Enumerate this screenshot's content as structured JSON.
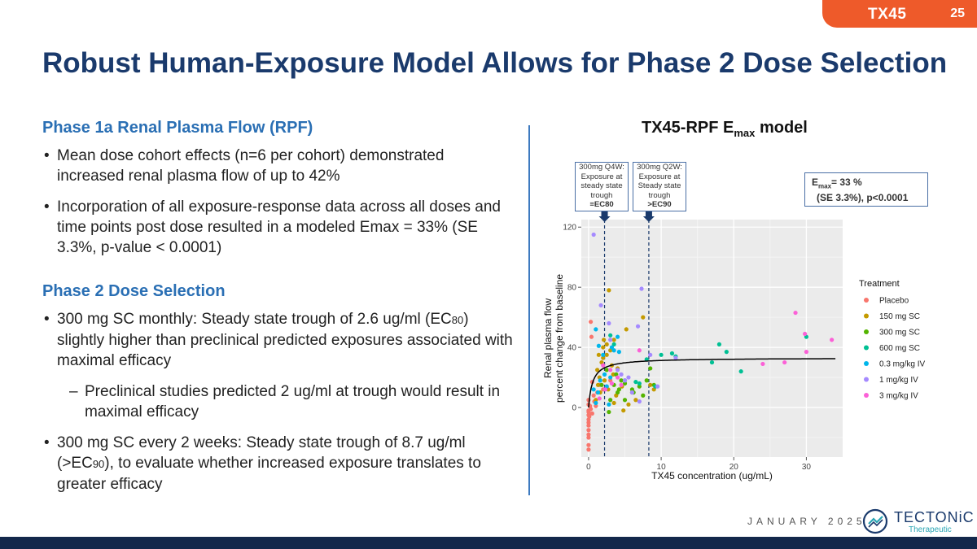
{
  "tag": {
    "name": "TX45",
    "page_number": "25"
  },
  "title": "Robust Human-Exposure Model Allows for Phase 2 Dose Selection",
  "left": {
    "section1_heading": "Phase 1a Renal Plasma Flow (RPF)",
    "section1_bullets": [
      "Mean dose cohort effects (n=6 per cohort) demonstrated increased renal plasma flow of up to 42%",
      "Incorporation of all exposure-response data across all doses and time points post dose resulted in a modeled Emax = 33% (SE 3.3%, p-value < 0.0001)"
    ],
    "section2_heading": "Phase 2 Dose Selection",
    "bullet3_part1": "300 mg SC monthly: Steady state trough of 2.6 ug/ml (EC",
    "bullet3_sub": "80",
    "bullet3_part2": ") slightly higher than preclinical predicted exposures associated with maximal efficacy",
    "sub_bullet": "Preclinical studies predicted 2 ug/ml at trough would result in maximal efficacy",
    "bullet4_part1": "300 mg SC every 2 weeks: Steady state trough of 8.7 ug/ml (>EC",
    "bullet4_sub": "90",
    "bullet4_part2": "), to evaluate whether increased exposure translates to greater efficacy"
  },
  "chart_title_main": "TX45-RPF E",
  "chart_title_sub": "max",
  "chart_title_rest": " model",
  "callouts": {
    "q4w": [
      "300mg Q4W:",
      "Exposure at",
      "steady state",
      "trough",
      "≡EC80"
    ],
    "q2w": [
      "300mg Q2W:",
      "Exposure at",
      "Steady state",
      "trough",
      ">EC90"
    ]
  },
  "emax_box": {
    "line1_a": "E",
    "line1_sub": "max",
    "line1_b": "= 33 %",
    "line2": "(SE 3.3%),  p<0.0001"
  },
  "colors": {
    "title": "#1a3a6c",
    "accent": "#2a6fb4",
    "tag": "#ee5a2a",
    "footer": "#13284b",
    "plot_bg": "#ebebeb",
    "series": [
      "#f8766d",
      "#c49a00",
      "#53b400",
      "#00c094",
      "#00b6eb",
      "#a58aff",
      "#fb61d7"
    ]
  },
  "chart_data": {
    "type": "scatter",
    "title": "TX45-RPF Emax model",
    "xlabel": "TX45 concentration (ug/mL)",
    "ylabel": [
      "Renal plasma flow",
      "percent change from baseline"
    ],
    "xlim": [
      -1,
      35
    ],
    "ylim": [
      -33,
      125
    ],
    "xticks": [
      0,
      10,
      20,
      30
    ],
    "yticks": [
      0,
      40,
      80,
      120
    ],
    "grid": true,
    "legend_title": "Treatment",
    "legend_position": "right",
    "reference_lines_x": [
      2.2,
      8.3
    ],
    "fit": {
      "emax": 33,
      "ec50": 0.55
    },
    "series": [
      {
        "name": "Placebo",
        "points": [
          [
            0,
            -2
          ],
          [
            0,
            -5
          ],
          [
            0,
            -8
          ],
          [
            0,
            -10
          ],
          [
            0,
            -12
          ],
          [
            0,
            -15
          ],
          [
            0,
            -18
          ],
          [
            0,
            -20
          ],
          [
            0,
            -25
          ],
          [
            0,
            -28
          ],
          [
            0,
            2
          ],
          [
            0,
            5
          ],
          [
            0,
            -3
          ],
          [
            0.1,
            -6
          ],
          [
            0.2,
            1
          ],
          [
            0.3,
            -1
          ],
          [
            0.5,
            -4
          ],
          [
            0.3,
            57
          ],
          [
            0.4,
            47
          ],
          [
            0.5,
            17
          ],
          [
            0.7,
            8
          ],
          [
            1.2,
            10
          ],
          [
            1.5,
            15
          ],
          [
            2,
            12
          ],
          [
            2.5,
            14
          ],
          [
            3,
            18
          ],
          [
            0.8,
            4
          ],
          [
            1,
            1
          ]
        ]
      },
      {
        "name": "150 mg SC",
        "points": [
          [
            2.8,
            78
          ],
          [
            7.5,
            60
          ],
          [
            3.5,
            45
          ],
          [
            5.2,
            52
          ],
          [
            2,
            40
          ],
          [
            2.5,
            35
          ],
          [
            1.8,
            30
          ],
          [
            3,
            38
          ],
          [
            1.2,
            25
          ],
          [
            1.5,
            20
          ],
          [
            2.2,
            18
          ],
          [
            4,
            26
          ],
          [
            3.2,
            28
          ],
          [
            2.7,
            12
          ],
          [
            3.8,
            8
          ],
          [
            1,
            5
          ],
          [
            1.6,
            10
          ],
          [
            2.5,
            42
          ],
          [
            2.1,
            45
          ],
          [
            3.4,
            22
          ],
          [
            4.6,
            14
          ],
          [
            6,
            10
          ],
          [
            6.5,
            5
          ],
          [
            8.5,
            15
          ],
          [
            9,
            12
          ],
          [
            5.5,
            2
          ],
          [
            4.8,
            -2
          ],
          [
            3.5,
            3
          ],
          [
            1.3,
            15
          ],
          [
            2,
            33
          ],
          [
            1.4,
            35
          ]
        ]
      },
      {
        "name": "300 mg SC",
        "points": [
          [
            3,
            5
          ],
          [
            3.5,
            15
          ],
          [
            4,
            10
          ],
          [
            4.5,
            18
          ],
          [
            5,
            16
          ],
          [
            6,
            12
          ],
          [
            7,
            14
          ],
          [
            8,
            18
          ],
          [
            8.5,
            26
          ],
          [
            9,
            15
          ],
          [
            3.8,
            22
          ],
          [
            2.8,
            -3
          ],
          [
            5,
            5
          ],
          [
            6.2,
            10
          ],
          [
            1.8,
            15
          ],
          [
            2.5,
            25
          ],
          [
            7.5,
            8
          ],
          [
            4.2,
            12
          ]
        ]
      },
      {
        "name": "600 mg SC",
        "points": [
          [
            3,
            48
          ],
          [
            3.5,
            42
          ],
          [
            10,
            35
          ],
          [
            11.5,
            36
          ],
          [
            12,
            34
          ],
          [
            18,
            42
          ],
          [
            19,
            37
          ],
          [
            17,
            30
          ],
          [
            21,
            24
          ],
          [
            30,
            47
          ],
          [
            8,
            32
          ],
          [
            7,
            16
          ],
          [
            9.2,
            14
          ],
          [
            6.5,
            17
          ],
          [
            5,
            18
          ]
        ]
      },
      {
        "name": "0.3 mg/kg IV",
        "points": [
          [
            1,
            52
          ],
          [
            1.4,
            41
          ],
          [
            2,
            35
          ],
          [
            2.5,
            14
          ],
          [
            3,
            20
          ],
          [
            3.2,
            40
          ],
          [
            3.5,
            38
          ],
          [
            4,
            47
          ],
          [
            4.2,
            37
          ],
          [
            1.3,
            10
          ],
          [
            2.8,
            2
          ],
          [
            1,
            3
          ],
          [
            0.7,
            12
          ],
          [
            2.2,
            22
          ],
          [
            1.6,
            18
          ]
        ]
      },
      {
        "name": "1 mg/kg IV",
        "points": [
          [
            0.7,
            115
          ],
          [
            1.7,
            68
          ],
          [
            2.8,
            56
          ],
          [
            7.3,
            79
          ],
          [
            6.8,
            54
          ],
          [
            8.5,
            35
          ],
          [
            12,
            33
          ],
          [
            3,
            45
          ],
          [
            4,
            25
          ],
          [
            4.5,
            22
          ],
          [
            5,
            18
          ],
          [
            6,
            10
          ],
          [
            5.5,
            20
          ],
          [
            7,
            4
          ],
          [
            9.5,
            14
          ]
        ]
      },
      {
        "name": "3 mg/kg IV",
        "points": [
          [
            28.5,
            63
          ],
          [
            29.8,
            49
          ],
          [
            33.5,
            45
          ],
          [
            30,
            37
          ],
          [
            27,
            30
          ],
          [
            24,
            29
          ],
          [
            7,
            38
          ],
          [
            4,
            20
          ],
          [
            3.2,
            16
          ],
          [
            2.3,
            12
          ],
          [
            1.5,
            6
          ],
          [
            3,
            25
          ],
          [
            2,
            28
          ],
          [
            4.5,
            15
          ]
        ]
      }
    ]
  },
  "footer": {
    "date": "JANUARY 2025",
    "logo_word": "TECTONiC",
    "logo_sub": "Therapeutic"
  }
}
